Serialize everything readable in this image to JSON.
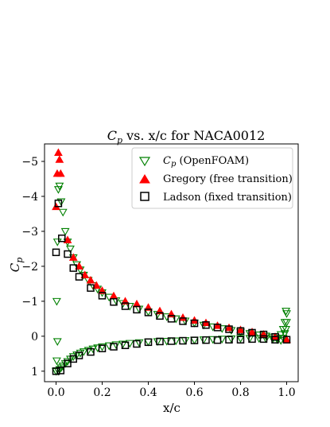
{
  "chart_data": {
    "type": "scatter",
    "title_main": "C",
    "title_sub": "p",
    "title_rest": " vs. x/c for NACA0012",
    "xlabel": "x/c",
    "ylabel_main": "C",
    "ylabel_sub": "p",
    "xlim": [
      -0.05,
      1.05
    ],
    "ylim": [
      1.3,
      -5.5
    ],
    "y_inverted": true,
    "xticks": [
      0.0,
      0.2,
      0.4,
      0.6,
      0.8,
      1.0
    ],
    "xtick_labels": [
      "0.0",
      "0.2",
      "0.4",
      "0.6",
      "0.8",
      "1.0"
    ],
    "yticks": [
      -5,
      -4,
      -3,
      -2,
      -1,
      0,
      1
    ],
    "ytick_labels": [
      "−5",
      "−4",
      "−3",
      "−2",
      "−1",
      "0",
      "1"
    ],
    "grid": false,
    "legend_position": "top-right",
    "series": [
      {
        "name_main": "C",
        "name_sub": "p",
        "name_rest": " (OpenFOAM)",
        "marker": "triangle-down-open",
        "color": "#008000",
        "x": [
          0.0,
          0.003,
          0.006,
          0.01,
          0.015,
          0.022,
          0.03,
          0.04,
          0.05,
          0.062,
          0.075,
          0.09,
          0.105,
          0.12,
          0.14,
          0.16,
          0.18,
          0.2,
          0.23,
          0.26,
          0.29,
          0.32,
          0.36,
          0.4,
          0.44,
          0.48,
          0.52,
          0.56,
          0.6,
          0.64,
          0.68,
          0.72,
          0.76,
          0.8,
          0.84,
          0.88,
          0.91,
          0.94,
          0.96,
          0.975,
          0.985,
          0.992,
          0.997,
          1.0,
          0.0,
          0.003,
          0.006,
          0.01,
          0.015,
          0.022,
          0.03,
          0.04,
          0.05,
          0.062,
          0.075,
          0.09,
          0.105,
          0.12,
          0.14,
          0.16,
          0.18,
          0.2,
          0.23,
          0.26,
          0.29,
          0.32,
          0.36,
          0.4,
          0.44,
          0.48,
          0.52,
          0.56,
          0.6,
          0.64,
          0.68,
          0.72,
          0.76,
          0.8,
          0.84,
          0.88,
          0.91,
          0.94,
          0.96,
          0.975,
          0.985,
          0.992,
          0.997,
          1.0
        ],
        "y": [
          1.0,
          -1.0,
          -2.7,
          -4.2,
          -4.3,
          -3.85,
          -3.55,
          -3.0,
          -2.7,
          -2.5,
          -2.25,
          -2.05,
          -1.9,
          -1.75,
          -1.6,
          -1.45,
          -1.35,
          -1.25,
          -1.12,
          -1.02,
          -0.94,
          -0.86,
          -0.78,
          -0.7,
          -0.63,
          -0.56,
          -0.5,
          -0.44,
          -0.38,
          -0.32,
          -0.27,
          -0.22,
          -0.17,
          -0.12,
          -0.08,
          -0.04,
          -0.01,
          0.02,
          0.05,
          -0.05,
          -0.2,
          -0.4,
          -0.72,
          -0.65,
          1.0,
          0.7,
          0.15,
          1.0,
          0.95,
          0.9,
          0.85,
          0.78,
          0.72,
          0.65,
          0.58,
          0.53,
          0.48,
          0.44,
          0.4,
          0.36,
          0.33,
          0.3,
          0.27,
          0.24,
          0.22,
          0.2,
          0.18,
          0.16,
          0.15,
          0.14,
          0.13,
          0.12,
          0.11,
          0.1,
          0.09,
          0.08,
          0.07,
          0.06,
          0.06,
          0.06,
          0.07,
          0.08,
          0.1,
          0.12,
          0.05,
          -0.08,
          -0.2,
          -0.4
        ]
      },
      {
        "name": "Gregory (free transition)",
        "marker": "triangle-up-filled",
        "color": "#ff0000",
        "x": [
          0.0,
          0.005,
          0.01,
          0.015,
          0.02,
          0.05,
          0.075,
          0.1,
          0.125,
          0.15,
          0.175,
          0.2,
          0.25,
          0.3,
          0.35,
          0.4,
          0.45,
          0.5,
          0.55,
          0.6,
          0.65,
          0.7,
          0.75,
          0.8,
          0.85,
          0.9,
          0.95,
          1.0
        ],
        "y": [
          -3.7,
          -4.65,
          -5.25,
          -5.05,
          -4.65,
          -2.75,
          -2.25,
          -2.0,
          -1.75,
          -1.6,
          -1.45,
          -1.3,
          -1.15,
          -1.0,
          -0.92,
          -0.82,
          -0.72,
          -0.63,
          -0.53,
          -0.45,
          -0.38,
          -0.3,
          -0.24,
          -0.18,
          -0.12,
          -0.05,
          0.02,
          0.1
        ]
      },
      {
        "name": "Ladson (fixed transition)",
        "marker": "square-open",
        "color": "#000000",
        "x": [
          0.0,
          0.01,
          0.025,
          0.05,
          0.075,
          0.1,
          0.15,
          0.2,
          0.25,
          0.3,
          0.35,
          0.4,
          0.45,
          0.5,
          0.55,
          0.6,
          0.65,
          0.7,
          0.75,
          0.8,
          0.85,
          0.9,
          0.95,
          1.0,
          0.0,
          0.02,
          0.05,
          0.075,
          0.1,
          0.15,
          0.2,
          0.25,
          0.3,
          0.35,
          0.4,
          0.45,
          0.5,
          0.55,
          0.6,
          0.65,
          0.7,
          0.75,
          0.8,
          0.85,
          0.9,
          0.95
        ],
        "y": [
          -2.4,
          -3.8,
          -2.8,
          -2.35,
          -1.95,
          -1.7,
          -1.38,
          -1.16,
          -0.98,
          -0.86,
          -0.76,
          -0.68,
          -0.58,
          -0.5,
          -0.43,
          -0.37,
          -0.32,
          -0.25,
          -0.2,
          -0.15,
          -0.1,
          -0.05,
          0.02,
          0.1,
          1.0,
          0.98,
          0.78,
          0.65,
          0.55,
          0.45,
          0.35,
          0.3,
          0.26,
          0.22,
          0.17,
          0.15,
          0.14,
          0.13,
          0.12,
          0.11,
          0.11,
          0.1,
          0.1,
          0.08,
          0.08,
          0.1
        ]
      }
    ]
  }
}
